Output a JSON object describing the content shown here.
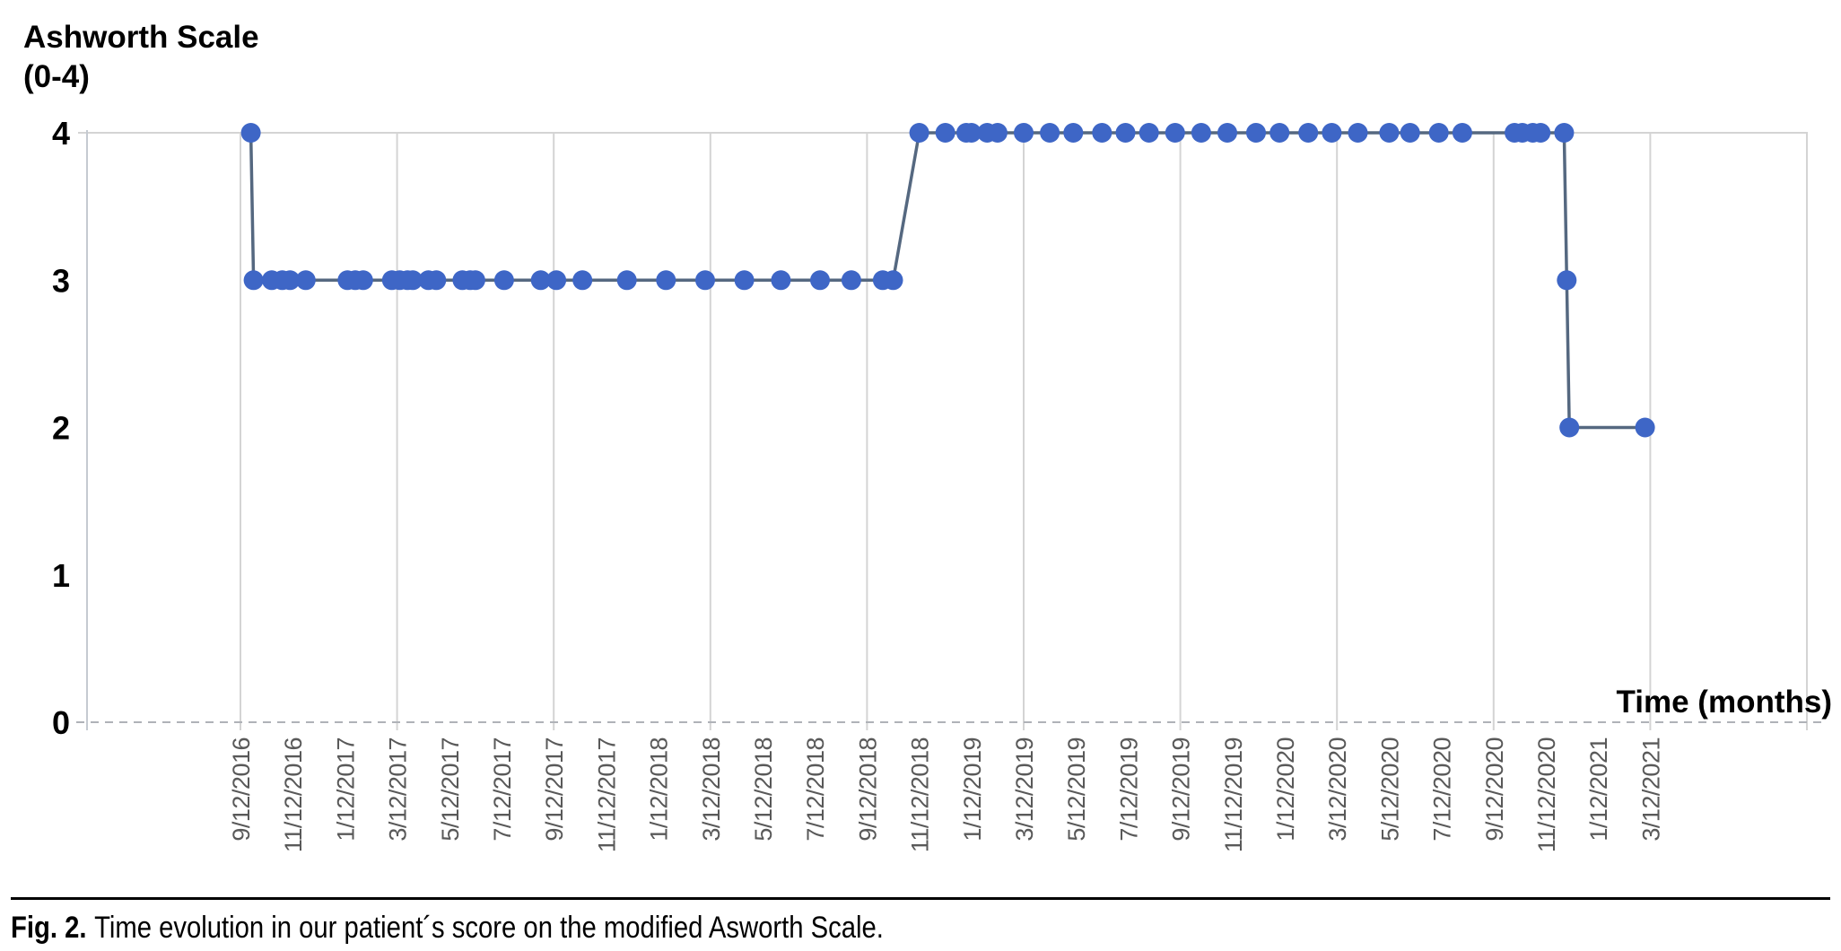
{
  "title": {
    "line1": "Ashworth Scale",
    "line2": "(0-4)"
  },
  "caption": {
    "label": "Fig. 2.",
    "text": "Time evolution in our patient´s score on the modified Asworth Scale."
  },
  "colors": {
    "point": "#3E66C6",
    "series_line": "#556880",
    "gridline": "#D4D4D4",
    "axis_line": "#C5CAD1",
    "zero_dashed_line": "#AFB2B8",
    "x_tick_label": "#595959",
    "y_tick_label": "#000000",
    "heading_text": "#000000"
  },
  "chart_data": {
    "type": "scatter",
    "title": "Ashworth Scale (0-4)",
    "xlabel": "Time (months)",
    "ylabel": "Ashworth Scale (0-4)",
    "ylim": [
      0,
      4
    ],
    "y_ticks": [
      4,
      3,
      2,
      1,
      0
    ],
    "grid": "vertical gridlines every 6 months; horizontal line at y=4; dashed horizontal line at y=0",
    "legend": "none",
    "x_origin_date": "9/12/2016",
    "x_tick_interval_months": 2,
    "x_tick_labels": [
      "9/12/2016",
      "11/12/2016",
      "1/12/2017",
      "3/12/2017",
      "5/12/2017",
      "7/12/2017",
      "9/12/2017",
      "11/12/2017",
      "1/12/2018",
      "3/12/2018",
      "5/12/2018",
      "7/12/2018",
      "9/12/2018",
      "11/12/2018",
      "1/12/2019",
      "3/12/2019",
      "5/12/2019",
      "7/12/2019",
      "9/12/2019",
      "11/12/2019",
      "1/12/2020",
      "3/12/2020",
      "5/12/2020",
      "7/12/2020",
      "9/12/2020",
      "11/12/2020",
      "1/12/2021",
      "3/12/2021"
    ],
    "gridline_label_indices": [
      0,
      3,
      6,
      9,
      12,
      15,
      18,
      21,
      24,
      27
    ],
    "points_x_unit": "months since 9/12/2016",
    "points": [
      [
        0.4,
        4
      ],
      [
        0.5,
        3
      ],
      [
        1.2,
        3
      ],
      [
        1.6,
        3
      ],
      [
        1.9,
        3
      ],
      [
        2.5,
        3
      ],
      [
        4.1,
        3
      ],
      [
        4.4,
        3
      ],
      [
        4.7,
        3
      ],
      [
        5.8,
        3
      ],
      [
        6.1,
        3
      ],
      [
        6.4,
        3
      ],
      [
        6.6,
        3
      ],
      [
        7.2,
        3
      ],
      [
        7.5,
        3
      ],
      [
        8.5,
        3
      ],
      [
        8.8,
        3
      ],
      [
        9.0,
        3
      ],
      [
        10.1,
        3
      ],
      [
        11.5,
        3
      ],
      [
        12.1,
        3
      ],
      [
        13.1,
        3
      ],
      [
        14.8,
        3
      ],
      [
        16.3,
        3
      ],
      [
        17.8,
        3
      ],
      [
        19.3,
        3
      ],
      [
        20.7,
        3
      ],
      [
        22.2,
        3
      ],
      [
        23.4,
        3
      ],
      [
        24.6,
        3
      ],
      [
        25.0,
        3
      ],
      [
        26.0,
        4
      ],
      [
        27.0,
        4
      ],
      [
        27.8,
        4
      ],
      [
        28.0,
        4
      ],
      [
        28.6,
        4
      ],
      [
        29.0,
        4
      ],
      [
        30.0,
        4
      ],
      [
        31.0,
        4
      ],
      [
        31.9,
        4
      ],
      [
        33.0,
        4
      ],
      [
        33.9,
        4
      ],
      [
        34.8,
        4
      ],
      [
        35.8,
        4
      ],
      [
        36.8,
        4
      ],
      [
        37.8,
        4
      ],
      [
        38.9,
        4
      ],
      [
        39.8,
        4
      ],
      [
        40.9,
        4
      ],
      [
        41.8,
        4
      ],
      [
        42.8,
        4
      ],
      [
        44.0,
        4
      ],
      [
        44.8,
        4
      ],
      [
        45.9,
        4
      ],
      [
        46.8,
        4
      ],
      [
        48.8,
        4
      ],
      [
        49.1,
        4
      ],
      [
        49.5,
        4
      ],
      [
        49.8,
        4
      ],
      [
        50.7,
        4
      ],
      [
        50.8,
        3
      ],
      [
        50.9,
        2
      ],
      [
        53.8,
        2
      ]
    ]
  }
}
